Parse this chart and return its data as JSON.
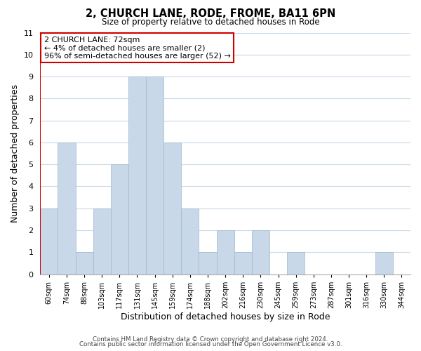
{
  "title": "2, CHURCH LANE, RODE, FROME, BA11 6PN",
  "subtitle": "Size of property relative to detached houses in Rode",
  "xlabel": "Distribution of detached houses by size in Rode",
  "ylabel": "Number of detached properties",
  "bin_labels": [
    "60sqm",
    "74sqm",
    "88sqm",
    "103sqm",
    "117sqm",
    "131sqm",
    "145sqm",
    "159sqm",
    "174sqm",
    "188sqm",
    "202sqm",
    "216sqm",
    "230sqm",
    "245sqm",
    "259sqm",
    "273sqm",
    "287sqm",
    "301sqm",
    "316sqm",
    "330sqm",
    "344sqm"
  ],
  "bar_heights": [
    3,
    6,
    1,
    3,
    5,
    9,
    9,
    6,
    3,
    1,
    2,
    1,
    2,
    0,
    1,
    0,
    0,
    0,
    0,
    1,
    0
  ],
  "bar_color": "#c8d8e8",
  "bar_edge_color": "#a0b8cc",
  "highlight_line_color": "#cc0000",
  "ylim": [
    0,
    11
  ],
  "yticks": [
    0,
    1,
    2,
    3,
    4,
    5,
    6,
    7,
    8,
    9,
    10,
    11
  ],
  "annotation_text": "2 CHURCH LANE: 72sqm\n← 4% of detached houses are smaller (2)\n96% of semi-detached houses are larger (52) →",
  "annotation_box_color": "#ffffff",
  "annotation_box_edge": "#cc0000",
  "footer_line1": "Contains HM Land Registry data © Crown copyright and database right 2024.",
  "footer_line2": "Contains public sector information licensed under the Open Government Licence v3.0.",
  "background_color": "#ffffff",
  "grid_color": "#c8d8e8"
}
